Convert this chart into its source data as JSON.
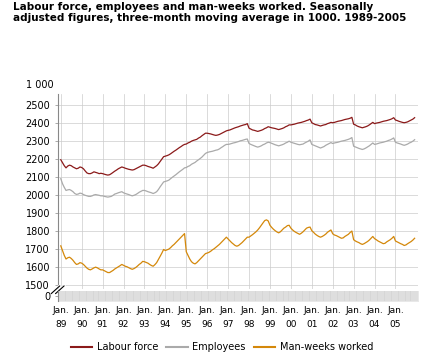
{
  "title": "Labour force, employees and man-weeks worked. Seasonally\nadjusted figures, three-month moving average in 1000. 1989-2005",
  "labour_force": [
    2195,
    2178,
    2162,
    2150,
    2160,
    2165,
    2162,
    2155,
    2150,
    2145,
    2148,
    2155,
    2152,
    2145,
    2133,
    2122,
    2118,
    2118,
    2122,
    2128,
    2125,
    2122,
    2118,
    2120,
    2118,
    2115,
    2112,
    2110,
    2112,
    2118,
    2125,
    2132,
    2138,
    2145,
    2150,
    2155,
    2152,
    2148,
    2145,
    2142,
    2140,
    2138,
    2140,
    2145,
    2150,
    2155,
    2160,
    2165,
    2165,
    2162,
    2158,
    2155,
    2152,
    2148,
    2155,
    2162,
    2172,
    2185,
    2198,
    2212,
    2215,
    2218,
    2222,
    2228,
    2235,
    2242,
    2248,
    2255,
    2262,
    2268,
    2275,
    2280,
    2282,
    2288,
    2292,
    2298,
    2302,
    2305,
    2308,
    2315,
    2320,
    2328,
    2335,
    2342,
    2342,
    2340,
    2338,
    2335,
    2332,
    2330,
    2332,
    2335,
    2340,
    2345,
    2350,
    2355,
    2358,
    2360,
    2364,
    2368,
    2372,
    2375,
    2378,
    2382,
    2385,
    2388,
    2390,
    2395,
    2370,
    2365,
    2360,
    2358,
    2355,
    2352,
    2355,
    2358,
    2362,
    2368,
    2372,
    2378,
    2375,
    2372,
    2370,
    2368,
    2365,
    2362,
    2365,
    2368,
    2372,
    2378,
    2382,
    2388,
    2388,
    2390,
    2392,
    2395,
    2398,
    2400,
    2402,
    2405,
    2408,
    2412,
    2415,
    2420,
    2400,
    2395,
    2390,
    2388,
    2385,
    2382,
    2385,
    2388,
    2390,
    2395,
    2398,
    2402,
    2400,
    2402,
    2405,
    2408,
    2410,
    2412,
    2415,
    2418,
    2420,
    2422,
    2425,
    2430,
    2392,
    2388,
    2382,
    2378,
    2375,
    2372,
    2375,
    2378,
    2382,
    2388,
    2395,
    2402,
    2395,
    2398,
    2400,
    2402,
    2405,
    2408,
    2410,
    2412,
    2415,
    2418,
    2422,
    2428,
    2415,
    2412,
    2408,
    2405,
    2402,
    2400,
    2402,
    2405,
    2410,
    2415,
    2420,
    2428
  ],
  "employees": [
    2090,
    2062,
    2042,
    2025,
    2028,
    2030,
    2025,
    2018,
    2008,
    2003,
    2005,
    2010,
    2008,
    2002,
    1998,
    1995,
    1992,
    1992,
    1995,
    2000,
    2002,
    2000,
    1998,
    1995,
    1995,
    1992,
    1990,
    1988,
    1990,
    1992,
    1998,
    2005,
    2008,
    2012,
    2015,
    2018,
    2012,
    2008,
    2005,
    2002,
    1998,
    1995,
    1998,
    2002,
    2008,
    2015,
    2020,
    2025,
    2025,
    2022,
    2018,
    2015,
    2012,
    2008,
    2012,
    2018,
    2030,
    2045,
    2058,
    2072,
    2075,
    2078,
    2082,
    2090,
    2098,
    2105,
    2112,
    2120,
    2128,
    2135,
    2142,
    2150,
    2152,
    2158,
    2162,
    2170,
    2175,
    2180,
    2188,
    2195,
    2202,
    2210,
    2220,
    2230,
    2235,
    2238,
    2240,
    2242,
    2245,
    2248,
    2250,
    2255,
    2262,
    2268,
    2275,
    2280,
    2280,
    2282,
    2285,
    2288,
    2290,
    2293,
    2296,
    2300,
    2302,
    2305,
    2308,
    2310,
    2285,
    2280,
    2276,
    2272,
    2268,
    2265,
    2268,
    2272,
    2278,
    2282,
    2288,
    2292,
    2290,
    2286,
    2282,
    2278,
    2275,
    2272,
    2275,
    2278,
    2282,
    2288,
    2292,
    2298,
    2292,
    2289,
    2286,
    2283,
    2280,
    2278,
    2280,
    2282,
    2288,
    2293,
    2298,
    2305,
    2280,
    2276,
    2272,
    2268,
    2264,
    2260,
    2264,
    2268,
    2275,
    2280,
    2285,
    2290,
    2285,
    2288,
    2290,
    2292,
    2295,
    2298,
    2300,
    2302,
    2305,
    2308,
    2312,
    2318,
    2270,
    2266,
    2262,
    2258,
    2255,
    2252,
    2255,
    2260,
    2266,
    2272,
    2280,
    2288,
    2280,
    2282,
    2285,
    2288,
    2290,
    2292,
    2295,
    2298,
    2302,
    2305,
    2310,
    2316,
    2292,
    2288,
    2285,
    2282,
    2278,
    2275,
    2278,
    2282,
    2288,
    2292,
    2298,
    2306
  ],
  "man_weeks": [
    1718,
    1692,
    1665,
    1645,
    1652,
    1655,
    1648,
    1638,
    1625,
    1615,
    1618,
    1625,
    1622,
    1615,
    1605,
    1595,
    1588,
    1585,
    1590,
    1596,
    1600,
    1596,
    1590,
    1585,
    1585,
    1580,
    1575,
    1570,
    1570,
    1576,
    1582,
    1590,
    1596,
    1602,
    1608,
    1615,
    1610,
    1605,
    1602,
    1597,
    1592,
    1588,
    1592,
    1598,
    1606,
    1615,
    1622,
    1632,
    1630,
    1626,
    1622,
    1615,
    1609,
    1605,
    1614,
    1625,
    1642,
    1660,
    1678,
    1698,
    1692,
    1696,
    1700,
    1708,
    1718,
    1726,
    1736,
    1746,
    1756,
    1766,
    1776,
    1786,
    1685,
    1665,
    1645,
    1630,
    1622,
    1618,
    1625,
    1635,
    1645,
    1655,
    1665,
    1675,
    1678,
    1682,
    1688,
    1696,
    1702,
    1710,
    1718,
    1726,
    1736,
    1746,
    1756,
    1766,
    1756,
    1746,
    1736,
    1728,
    1720,
    1716,
    1720,
    1728,
    1736,
    1746,
    1756,
    1766,
    1766,
    1773,
    1780,
    1788,
    1796,
    1806,
    1818,
    1832,
    1845,
    1858,
    1862,
    1856,
    1832,
    1820,
    1810,
    1802,
    1795,
    1790,
    1796,
    1806,
    1816,
    1822,
    1830,
    1832,
    1816,
    1806,
    1798,
    1792,
    1787,
    1782,
    1788,
    1796,
    1806,
    1816,
    1820,
    1822,
    1802,
    1793,
    1783,
    1776,
    1770,
    1766,
    1770,
    1776,
    1783,
    1793,
    1800,
    1806,
    1785,
    1778,
    1775,
    1770,
    1765,
    1760,
    1762,
    1770,
    1776,
    1782,
    1792,
    1800,
    1752,
    1745,
    1740,
    1736,
    1730,
    1726,
    1730,
    1736,
    1742,
    1750,
    1760,
    1770,
    1758,
    1752,
    1745,
    1740,
    1735,
    1730,
    1732,
    1740,
    1746,
    1752,
    1760,
    1770,
    1745,
    1740,
    1735,
    1730,
    1726,
    1720,
    1723,
    1730,
    1736,
    1742,
    1750,
    1760
  ],
  "labour_force_color": "#8B1A1A",
  "employees_color": "#AAAAAA",
  "man_weeks_color": "#D4880A",
  "grid_color": "#CCCCCC",
  "start_year": 1989,
  "n_months": 204,
  "ylim_main": [
    1480,
    2560
  ],
  "yticks_main": [
    1500,
    1600,
    1700,
    1800,
    1900,
    2000,
    2100,
    2200,
    2300,
    2400,
    2500
  ],
  "xlim": [
    1988.85,
    2006.1
  ]
}
